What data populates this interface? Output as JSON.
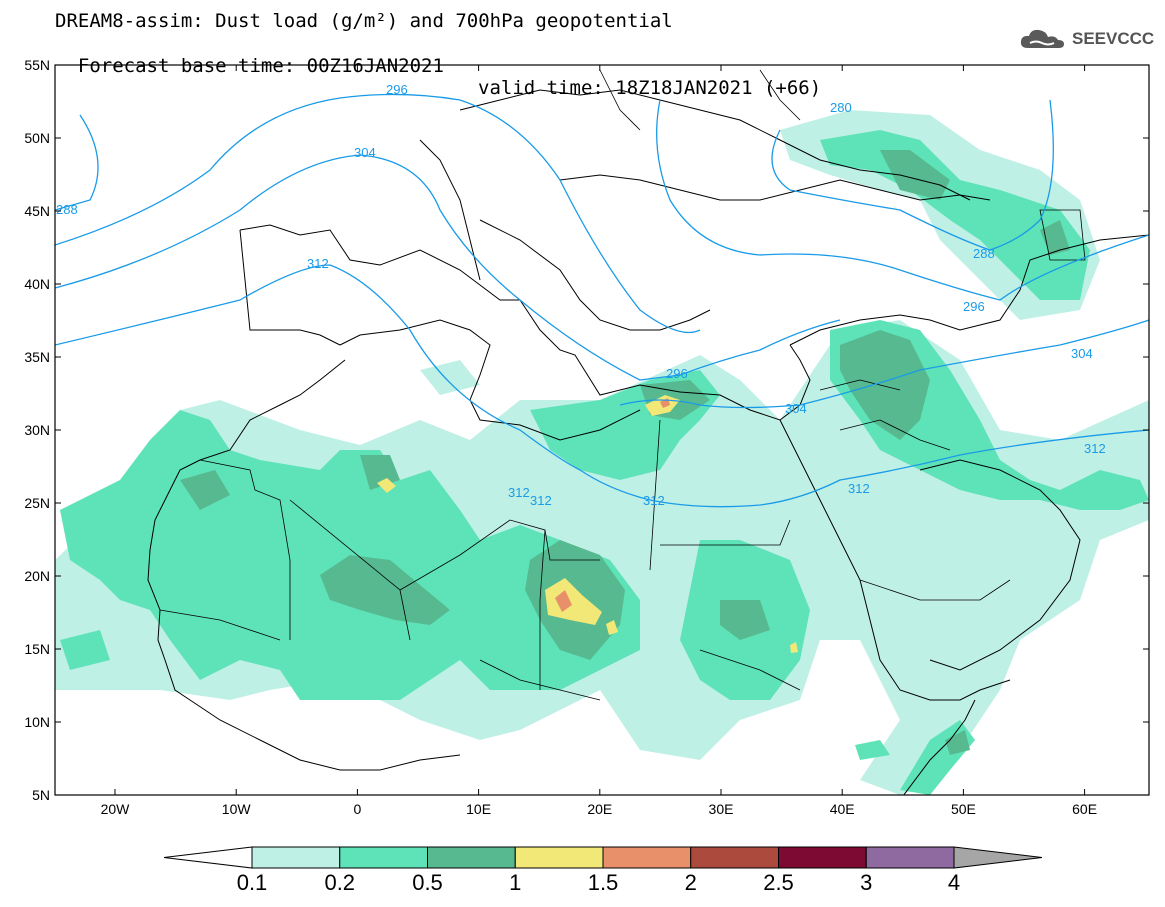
{
  "header": {
    "title_line1": "DREAM8-assim: Dust load (g/m²) and 700hPa geopotential",
    "base_time": "Forecast base time: 00Z16JAN2021",
    "valid_time": "valid time: 18Z18JAN2021 (+66)"
  },
  "logo": {
    "text": "SEEVCCC",
    "icon": "cloud-icon"
  },
  "axes": {
    "lat_labels": [
      "55N",
      "50N",
      "45N",
      "40N",
      "35N",
      "30N",
      "25N",
      "20N",
      "15N",
      "10N",
      "5N"
    ],
    "lon_labels": [
      "20W",
      "10W",
      "0",
      "10E",
      "20E",
      "30E",
      "40E",
      "50E",
      "60E"
    ]
  },
  "contour_labels": [
    "296",
    "304",
    "312",
    "280",
    "288",
    "296",
    "304",
    "312",
    "296",
    "312",
    "312",
    "312",
    "312",
    "288"
  ],
  "colorbar": {
    "ticks": [
      "0.1",
      "0.2",
      "0.5",
      "1",
      "1.5",
      "2",
      "2.5",
      "3",
      "4"
    ],
    "colors": [
      "#bff0e6",
      "#5ee3b8",
      "#56b98f",
      "#f2e878",
      "#e8906a",
      "#ad4a3e",
      "#7d0a32",
      "#8e6aa0"
    ],
    "under_color": "#ffffff",
    "over_color": "#a6a6a6"
  },
  "colors": {
    "contour": "#1a9be8",
    "border": "#000000"
  }
}
